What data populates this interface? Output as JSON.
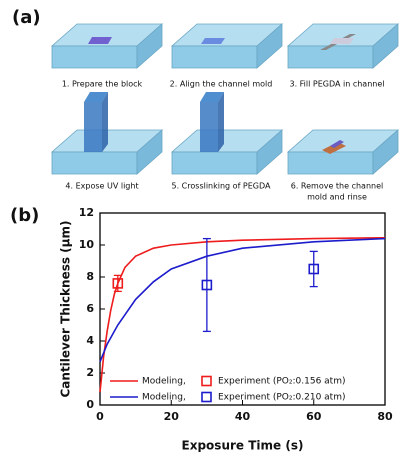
{
  "panel_labels": [
    "(a)",
    "(b)"
  ],
  "steps": [
    {
      "caption": [
        "1. Prepare the block"
      ]
    },
    {
      "caption": [
        "2. Align the channel mold"
      ]
    },
    {
      "caption": [
        "3. Fill PEGDA in channel"
      ]
    },
    {
      "caption": [
        "4. Expose UV light"
      ]
    },
    {
      "caption": [
        "5. Crosslinking of PEGDA"
      ]
    },
    {
      "caption": [
        "6. Remove the channel",
        "mold and rinse"
      ]
    }
  ],
  "chart_data": {
    "type": "line",
    "x_label": "Exposure Time (s)",
    "y_label": "Cantilever Thickness (μm)",
    "xlim": [
      0,
      80
    ],
    "xticks": [
      0,
      20,
      40,
      60,
      80
    ],
    "ylim": [
      0,
      12
    ],
    "yticks": [
      0,
      2,
      4,
      6,
      8,
      10,
      12
    ],
    "series": [
      {
        "name": "Modeling,",
        "kind": "line",
        "color": "#ee1c1c",
        "x": [
          0,
          1,
          2,
          3,
          4,
          5,
          7,
          10,
          15,
          20,
          30,
          40,
          60,
          80
        ],
        "values": [
          0.8,
          3.0,
          4.6,
          5.9,
          6.9,
          7.6,
          8.6,
          9.3,
          9.8,
          10.0,
          10.2,
          10.3,
          10.4,
          10.45
        ]
      },
      {
        "name": "Experiment (PO₂:0.156 atm)",
        "kind": "scatter",
        "color": "#ee1c1c",
        "x": [
          5
        ],
        "values": [
          7.6
        ],
        "errors": [
          0.5
        ]
      },
      {
        "name": "Modeling,",
        "kind": "line",
        "color": "#1c1ccc",
        "x": [
          0,
          2,
          5,
          10,
          15,
          20,
          30,
          40,
          60,
          80
        ],
        "values": [
          2.7,
          3.8,
          5.0,
          6.6,
          7.7,
          8.5,
          9.3,
          9.8,
          10.2,
          10.4
        ]
      },
      {
        "name": "Experiment (PO₂:0.210 atm)",
        "kind": "scatter",
        "color": "#1c1ccc",
        "x": [
          30,
          60
        ],
        "values": [
          7.5,
          8.5
        ],
        "errors": [
          2.9,
          1.1
        ]
      }
    ]
  }
}
